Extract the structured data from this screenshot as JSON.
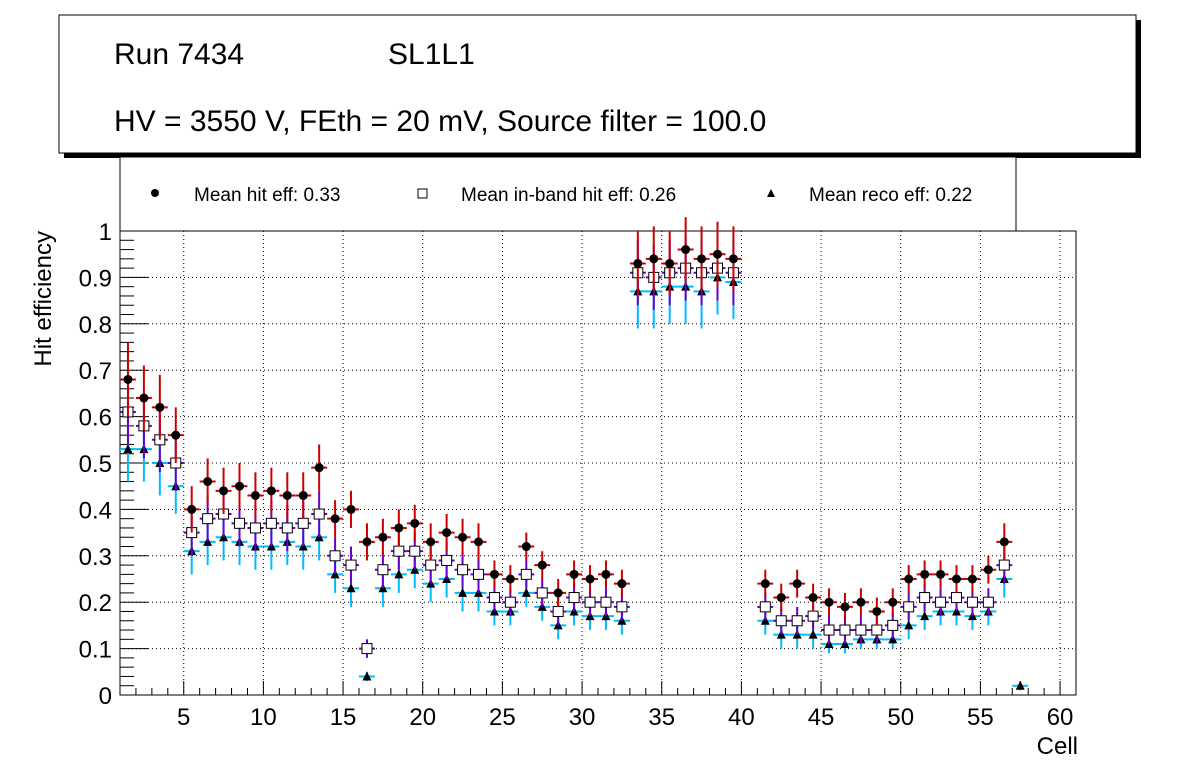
{
  "title_box": {
    "run": "Run 7434",
    "layer": "SL1L1",
    "conditions": "HV = 3550 V, FEth = 20 mV, Source filter = 100.0"
  },
  "legend": {
    "hit": "Mean hit  eff: 0.33",
    "inband": "Mean in-band hit eff: 0.26",
    "reco": "Mean reco eff: 0.22"
  },
  "colors": {
    "hit_err": "#cc0000",
    "inband_err": "#6600cc",
    "reco_err": "#00bbff",
    "marker": "#000000"
  },
  "chart_data": {
    "type": "scatter",
    "xlabel": "Cell",
    "ylabel": "Hit efficiency",
    "xlim": [
      1,
      61
    ],
    "ylim": [
      0,
      1
    ],
    "xticks": [
      5,
      10,
      15,
      20,
      25,
      30,
      35,
      40,
      45,
      50,
      55,
      60
    ],
    "yticks": [
      0,
      0.1,
      0.2,
      0.3,
      0.4,
      0.5,
      0.6,
      0.7,
      0.8,
      0.9,
      1
    ],
    "ytick_labels": [
      "0",
      "0.1",
      "0.2",
      "0.3",
      "0.4",
      "0.5",
      "0.6",
      "0.7",
      "0.8",
      "0.9",
      "1"
    ],
    "grid": true,
    "series": [
      {
        "name": "Mean hit eff",
        "marker": "circle",
        "points": [
          [
            1.5,
            0.68,
            0.08
          ],
          [
            2.5,
            0.64,
            0.07
          ],
          [
            3.5,
            0.62,
            0.07
          ],
          [
            4.5,
            0.56,
            0.06
          ],
          [
            5.5,
            0.4,
            0.05
          ],
          [
            6.5,
            0.46,
            0.05
          ],
          [
            7.5,
            0.44,
            0.05
          ],
          [
            8.5,
            0.45,
            0.05
          ],
          [
            9.5,
            0.43,
            0.05
          ],
          [
            10.5,
            0.44,
            0.05
          ],
          [
            11.5,
            0.43,
            0.05
          ],
          [
            12.5,
            0.43,
            0.05
          ],
          [
            13.5,
            0.49,
            0.05
          ],
          [
            14.5,
            0.38,
            0.04
          ],
          [
            15.5,
            0.4,
            0.04
          ],
          [
            16.5,
            0.33,
            0.04
          ],
          [
            17.5,
            0.34,
            0.04
          ],
          [
            18.5,
            0.36,
            0.04
          ],
          [
            19.5,
            0.37,
            0.04
          ],
          [
            20.5,
            0.33,
            0.04
          ],
          [
            21.5,
            0.35,
            0.04
          ],
          [
            22.5,
            0.34,
            0.04
          ],
          [
            23.5,
            0.33,
            0.04
          ],
          [
            24.5,
            0.26,
            0.03
          ],
          [
            25.5,
            0.25,
            0.03
          ],
          [
            26.5,
            0.32,
            0.03
          ],
          [
            27.5,
            0.28,
            0.03
          ],
          [
            28.5,
            0.22,
            0.03
          ],
          [
            29.5,
            0.26,
            0.03
          ],
          [
            30.5,
            0.25,
            0.03
          ],
          [
            31.5,
            0.26,
            0.03
          ],
          [
            32.5,
            0.24,
            0.03
          ],
          [
            33.5,
            0.93,
            0.07
          ],
          [
            34.5,
            0.94,
            0.07
          ],
          [
            35.5,
            0.93,
            0.07
          ],
          [
            36.5,
            0.96,
            0.07
          ],
          [
            37.5,
            0.94,
            0.07
          ],
          [
            38.5,
            0.95,
            0.07
          ],
          [
            39.5,
            0.94,
            0.07
          ],
          [
            41.5,
            0.24,
            0.03
          ],
          [
            42.5,
            0.21,
            0.03
          ],
          [
            43.5,
            0.24,
            0.03
          ],
          [
            44.5,
            0.21,
            0.03
          ],
          [
            45.5,
            0.2,
            0.03
          ],
          [
            46.5,
            0.19,
            0.03
          ],
          [
            47.5,
            0.2,
            0.03
          ],
          [
            48.5,
            0.18,
            0.03
          ],
          [
            49.5,
            0.2,
            0.03
          ],
          [
            50.5,
            0.25,
            0.03
          ],
          [
            51.5,
            0.26,
            0.03
          ],
          [
            52.5,
            0.26,
            0.03
          ],
          [
            53.5,
            0.25,
            0.03
          ],
          [
            54.5,
            0.25,
            0.03
          ],
          [
            55.5,
            0.27,
            0.03
          ],
          [
            56.5,
            0.33,
            0.04
          ]
        ]
      },
      {
        "name": "Mean in-band hit eff",
        "marker": "open-square",
        "points": [
          [
            1.5,
            0.61,
            0.07
          ],
          [
            2.5,
            0.58,
            0.07
          ],
          [
            3.5,
            0.55,
            0.07
          ],
          [
            4.5,
            0.5,
            0.06
          ],
          [
            5.5,
            0.35,
            0.05
          ],
          [
            6.5,
            0.38,
            0.05
          ],
          [
            7.5,
            0.39,
            0.05
          ],
          [
            8.5,
            0.37,
            0.05
          ],
          [
            9.5,
            0.36,
            0.05
          ],
          [
            10.5,
            0.37,
            0.05
          ],
          [
            11.5,
            0.36,
            0.05
          ],
          [
            12.5,
            0.37,
            0.05
          ],
          [
            13.5,
            0.39,
            0.05
          ],
          [
            14.5,
            0.3,
            0.04
          ],
          [
            15.5,
            0.28,
            0.04
          ],
          [
            16.5,
            0.1,
            0.02
          ],
          [
            17.5,
            0.27,
            0.04
          ],
          [
            18.5,
            0.31,
            0.04
          ],
          [
            19.5,
            0.31,
            0.04
          ],
          [
            20.5,
            0.28,
            0.04
          ],
          [
            21.5,
            0.29,
            0.04
          ],
          [
            22.5,
            0.27,
            0.04
          ],
          [
            23.5,
            0.26,
            0.04
          ],
          [
            24.5,
            0.21,
            0.03
          ],
          [
            25.5,
            0.2,
            0.03
          ],
          [
            26.5,
            0.26,
            0.03
          ],
          [
            27.5,
            0.22,
            0.03
          ],
          [
            28.5,
            0.18,
            0.03
          ],
          [
            29.5,
            0.21,
            0.03
          ],
          [
            30.5,
            0.2,
            0.03
          ],
          [
            31.5,
            0.2,
            0.03
          ],
          [
            32.5,
            0.19,
            0.03
          ],
          [
            33.5,
            0.91,
            0.07
          ],
          [
            34.5,
            0.9,
            0.07
          ],
          [
            35.5,
            0.91,
            0.07
          ],
          [
            36.5,
            0.92,
            0.07
          ],
          [
            37.5,
            0.91,
            0.07
          ],
          [
            38.5,
            0.92,
            0.07
          ],
          [
            39.5,
            0.91,
            0.07
          ],
          [
            41.5,
            0.19,
            0.03
          ],
          [
            42.5,
            0.16,
            0.03
          ],
          [
            43.5,
            0.16,
            0.03
          ],
          [
            44.5,
            0.17,
            0.03
          ],
          [
            45.5,
            0.14,
            0.03
          ],
          [
            46.5,
            0.14,
            0.03
          ],
          [
            47.5,
            0.14,
            0.03
          ],
          [
            48.5,
            0.14,
            0.03
          ],
          [
            49.5,
            0.15,
            0.03
          ],
          [
            50.5,
            0.19,
            0.03
          ],
          [
            51.5,
            0.21,
            0.03
          ],
          [
            52.5,
            0.2,
            0.03
          ],
          [
            53.5,
            0.21,
            0.03
          ],
          [
            54.5,
            0.2,
            0.03
          ],
          [
            55.5,
            0.2,
            0.03
          ],
          [
            56.5,
            0.28,
            0.04
          ]
        ]
      },
      {
        "name": "Mean reco eff",
        "marker": "triangle",
        "points": [
          [
            1.5,
            0.53,
            0.07
          ],
          [
            2.5,
            0.53,
            0.07
          ],
          [
            3.5,
            0.5,
            0.07
          ],
          [
            4.5,
            0.45,
            0.06
          ],
          [
            5.5,
            0.31,
            0.05
          ],
          [
            6.5,
            0.33,
            0.05
          ],
          [
            7.5,
            0.34,
            0.05
          ],
          [
            8.5,
            0.33,
            0.05
          ],
          [
            9.5,
            0.32,
            0.05
          ],
          [
            10.5,
            0.32,
            0.05
          ],
          [
            11.5,
            0.33,
            0.05
          ],
          [
            12.5,
            0.32,
            0.05
          ],
          [
            13.5,
            0.34,
            0.05
          ],
          [
            14.5,
            0.26,
            0.04
          ],
          [
            15.5,
            0.23,
            0.04
          ],
          [
            16.5,
            0.04,
            0.01
          ],
          [
            17.5,
            0.23,
            0.04
          ],
          [
            18.5,
            0.26,
            0.04
          ],
          [
            19.5,
            0.27,
            0.04
          ],
          [
            20.5,
            0.24,
            0.04
          ],
          [
            21.5,
            0.25,
            0.04
          ],
          [
            22.5,
            0.22,
            0.04
          ],
          [
            23.5,
            0.22,
            0.04
          ],
          [
            24.5,
            0.18,
            0.03
          ],
          [
            25.5,
            0.18,
            0.03
          ],
          [
            26.5,
            0.22,
            0.03
          ],
          [
            27.5,
            0.19,
            0.03
          ],
          [
            28.5,
            0.15,
            0.03
          ],
          [
            29.5,
            0.18,
            0.03
          ],
          [
            30.5,
            0.17,
            0.03
          ],
          [
            31.5,
            0.17,
            0.03
          ],
          [
            32.5,
            0.16,
            0.03
          ],
          [
            33.5,
            0.87,
            0.08
          ],
          [
            34.5,
            0.87,
            0.08
          ],
          [
            35.5,
            0.88,
            0.08
          ],
          [
            36.5,
            0.88,
            0.08
          ],
          [
            37.5,
            0.87,
            0.08
          ],
          [
            38.5,
            0.9,
            0.08
          ],
          [
            39.5,
            0.89,
            0.08
          ],
          [
            41.5,
            0.16,
            0.03
          ],
          [
            42.5,
            0.13,
            0.03
          ],
          [
            43.5,
            0.13,
            0.03
          ],
          [
            44.5,
            0.13,
            0.03
          ],
          [
            45.5,
            0.11,
            0.02
          ],
          [
            46.5,
            0.11,
            0.02
          ],
          [
            47.5,
            0.12,
            0.02
          ],
          [
            48.5,
            0.12,
            0.02
          ],
          [
            49.5,
            0.12,
            0.02
          ],
          [
            50.5,
            0.15,
            0.03
          ],
          [
            51.5,
            0.17,
            0.03
          ],
          [
            52.5,
            0.18,
            0.03
          ],
          [
            53.5,
            0.18,
            0.03
          ],
          [
            54.5,
            0.17,
            0.03
          ],
          [
            55.5,
            0.18,
            0.03
          ],
          [
            56.5,
            0.25,
            0.04
          ],
          [
            57.5,
            0.02,
            0.01
          ]
        ]
      }
    ]
  }
}
